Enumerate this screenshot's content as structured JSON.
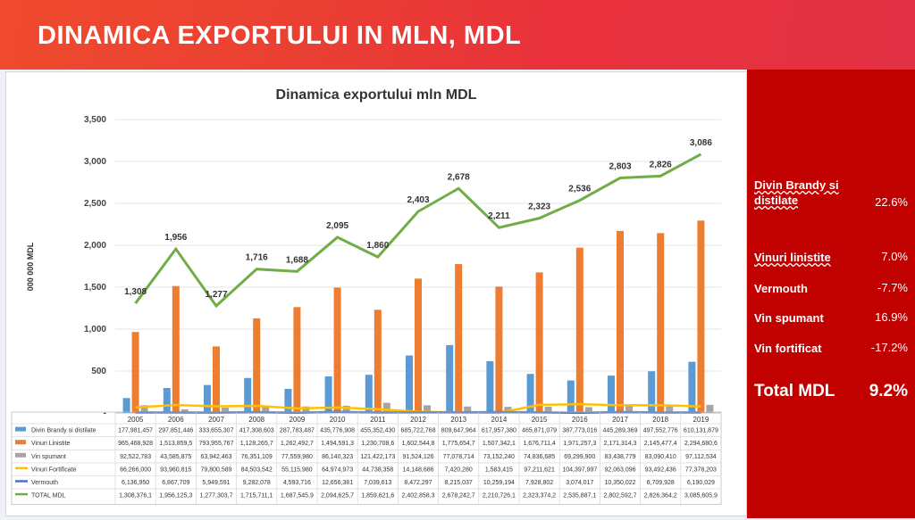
{
  "header": {
    "title": "DINAMICA EXPORTULUI IN MLN, MDL"
  },
  "colors": {
    "header_accent": "#e9313c",
    "panel_red": "#c10000",
    "brandy": "#5b9bd5",
    "vinuri": "#ed7d31",
    "spumant": "#a5a5a5",
    "fortificat": "#ffc000",
    "vermouth": "#4472c4",
    "total": "#70ad47"
  },
  "chart_data": {
    "type": "bar",
    "title": "Dinamica exportului mln MDL",
    "ylabel": "000 000  MDL",
    "ylim": [
      0,
      3500
    ],
    "yticks": [
      "3,500",
      "3,000",
      "2,500",
      "2,000",
      "1,500",
      "1,000",
      "500",
      "-"
    ],
    "categories": [
      "2005",
      "2006",
      "2007",
      "2008",
      "2009",
      "2010",
      "2011",
      "2012",
      "2013",
      "2014",
      "2015",
      "2016",
      "2017",
      "2018",
      "2019"
    ],
    "series": [
      {
        "name": "Divin Brandy si distilate",
        "kind": "bar",
        "color": "#5b9bd5",
        "values": [
          177.98,
          297.85,
          333.66,
          417.31,
          287.78,
          435.78,
          455.35,
          685.72,
          809.65,
          617.96,
          465.87,
          387.77,
          445.29,
          497.55,
          610.13
        ],
        "table": [
          "177,981,457",
          "297,851,446",
          "333,655,307",
          "417,308,603",
          "287,783,487",
          "435,776,908",
          "455,352,430",
          "685,722,768",
          "809,647,964",
          "617,957,380",
          "465,871,079",
          "387,773,016",
          "445,289,369",
          "497,552,776",
          "610,131,879"
        ]
      },
      {
        "name": "Vinuri Linistite",
        "kind": "bar",
        "color": "#ed7d31",
        "values": [
          965.47,
          1513.86,
          793.96,
          1128.27,
          1262.49,
          1494.59,
          1230.71,
          1602.54,
          1775.65,
          1507.34,
          1676.71,
          1971.26,
          2171.31,
          2145.48,
          2294.68
        ],
        "table": [
          "965,468,928",
          "1,513,859,5",
          "793,955,767",
          "1,128,265,7",
          "1,262,492,7",
          "1,494,591,3",
          "1,230,708,6",
          "1,602,544,8",
          "1,775,654,7",
          "1,507,342,1",
          "1,676,711,4",
          "1,971,257,3",
          "2,171,314,3",
          "2,145,477,4",
          "2,294,680,6"
        ]
      },
      {
        "name": "Vin spumant",
        "kind": "bar",
        "color": "#a5a5a5",
        "values": [
          92.52,
          43.59,
          63.94,
          76.35,
          77.56,
          86.14,
          121.42,
          91.52,
          77.08,
          73.15,
          74.84,
          69.3,
          83.44,
          83.09,
          97.11
        ],
        "table": [
          "92,522,783",
          "43,585,875",
          "63,942,463",
          "76,351,109",
          "77,559,980",
          "86,140,323",
          "121,422,173",
          "91,524,126",
          "77,078,714",
          "73,152,240",
          "74,836,685",
          "69,299,900",
          "83,438,779",
          "83,090,410",
          "97,112,534"
        ]
      },
      {
        "name": "Vinuri Fortificate",
        "kind": "line",
        "color": "#ffc000",
        "values": [
          66.27,
          93.96,
          79.8,
          84.5,
          55.12,
          64.97,
          44.74,
          14.15,
          7.42,
          1.58,
          97.21,
          104.4,
          92.06,
          93.49,
          77.38
        ],
        "table": [
          "66,266,000",
          "93,960,815",
          "79,800,589",
          "84,503,542",
          "55,115,980",
          "64,974,973",
          "44,738,358",
          "14,148,686",
          "7,420,280",
          "1,583,415",
          "97,211,621",
          "104,397,997",
          "92,063,096",
          "93,492,436",
          "77,378,203"
        ]
      },
      {
        "name": "Vermouth",
        "kind": "line",
        "color": "#4472c4",
        "values": [
          6.14,
          6.87,
          5.95,
          9.28,
          4.59,
          12.66,
          7.04,
          8.47,
          8.22,
          10.26,
          7.93,
          3.07,
          10.35,
          6.71,
          6.19
        ],
        "table": [
          "6,136,950",
          "6,867,709",
          "5,949,591",
          "9,282,078",
          "4,593,716",
          "12,656,381",
          "7,039,613",
          "8,472,297",
          "8,215,037",
          "10,259,194",
          "7,928,802",
          "3,074,017",
          "10,350,022",
          "6,709,928",
          "6,190,029"
        ]
      },
      {
        "name": "TOTAL MDL",
        "kind": "line",
        "color": "#70ad47",
        "values": [
          1308,
          1956,
          1277,
          1716,
          1688,
          2095,
          1860,
          2403,
          2678,
          2211,
          2323,
          2536,
          2803,
          2826,
          3086
        ],
        "labels": [
          "1,308",
          "1,956",
          "1,277",
          "1,716",
          "1,688",
          "2,095",
          "1,860",
          "2,403",
          "2,678",
          "2,211",
          "2,323",
          "2,536",
          "2,803",
          "2,826",
          "3,086"
        ],
        "table": [
          "1,308,376,1",
          "1,956,125,3",
          "1,277,303,7",
          "1,715,711,1",
          "1,687,545,9",
          "2,094,625,7",
          "1,859,621,6",
          "2,402,858,3",
          "2,678,242,7",
          "2,210,726,1",
          "2,323,374,2",
          "2,535,887,1",
          "2,802,592,7",
          "2,826,364,2",
          "3,085,605,9"
        ]
      }
    ]
  },
  "summary": {
    "items": [
      {
        "label": "Divin Brandy si distilate",
        "value": "22.6%",
        "underline": true
      },
      {
        "label": "Vinuri linistite",
        "value": "7.0%",
        "underline": true
      },
      {
        "label": "Vermouth",
        "value": "-7.7%",
        "underline": false
      },
      {
        "label": "Vin spumant",
        "value": "16.9%",
        "underline": false
      },
      {
        "label": "Vin fortificat",
        "value": "-17.2%",
        "underline": false
      }
    ],
    "total": {
      "label": "Total MDL",
      "value": "9.2%"
    }
  }
}
